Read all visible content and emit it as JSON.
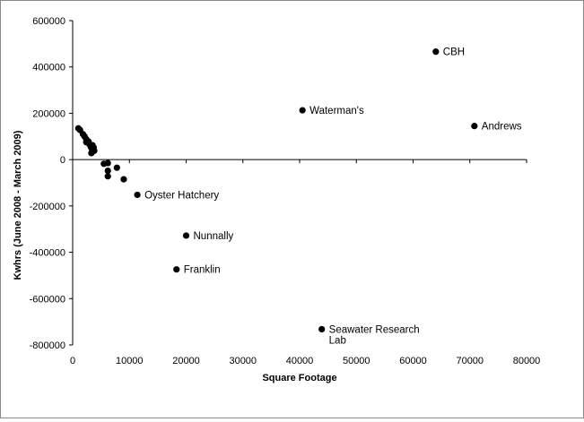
{
  "chart_data": {
    "type": "scatter",
    "title": "",
    "xlabel": "Square Footage",
    "ylabel": "Kwhrs (June 2008 - March 2009)",
    "xlim": [
      0,
      80000
    ],
    "ylim": [
      -800000,
      600000
    ],
    "x_ticks": [
      0,
      10000,
      20000,
      30000,
      40000,
      50000,
      60000,
      70000,
      80000
    ],
    "y_ticks": [
      -800000,
      -600000,
      -400000,
      -200000,
      0,
      200000,
      400000,
      600000
    ],
    "x_tick_labels": [
      "0",
      "10000",
      "20000",
      "30000",
      "40000",
      "50000",
      "60000",
      "70000",
      "80000"
    ],
    "y_tick_labels": [
      "-800000",
      "-600000",
      "-400000",
      "-200000",
      "0",
      "200000",
      "400000",
      "600000"
    ],
    "grid": false,
    "legend": false,
    "marker_color": "#000000",
    "points": [
      {
        "x": 1000,
        "y": 135000,
        "label": ""
      },
      {
        "x": 1300,
        "y": 128000,
        "label": ""
      },
      {
        "x": 1800,
        "y": 110000,
        "label": ""
      },
      {
        "x": 2100,
        "y": 100000,
        "label": ""
      },
      {
        "x": 2400,
        "y": 88000,
        "label": ""
      },
      {
        "x": 2400,
        "y": 75000,
        "label": ""
      },
      {
        "x": 2800,
        "y": 78000,
        "label": ""
      },
      {
        "x": 3000,
        "y": 65000,
        "label": ""
      },
      {
        "x": 3200,
        "y": 55000,
        "label": ""
      },
      {
        "x": 3400,
        "y": 45000,
        "label": ""
      },
      {
        "x": 3500,
        "y": 62000,
        "label": ""
      },
      {
        "x": 3700,
        "y": 52000,
        "label": ""
      },
      {
        "x": 3800,
        "y": 38000,
        "label": ""
      },
      {
        "x": 3300,
        "y": 28000,
        "label": ""
      },
      {
        "x": 5500,
        "y": -18000,
        "label": ""
      },
      {
        "x": 6200,
        "y": -15000,
        "label": ""
      },
      {
        "x": 6200,
        "y": -48000,
        "label": ""
      },
      {
        "x": 6200,
        "y": -72000,
        "label": ""
      },
      {
        "x": 7800,
        "y": -35000,
        "label": ""
      },
      {
        "x": 9000,
        "y": -85000,
        "label": ""
      },
      {
        "x": 11400,
        "y": -152000,
        "label": "Oyster Hatchery"
      },
      {
        "x": 20000,
        "y": -328000,
        "label": "Nunnally"
      },
      {
        "x": 18300,
        "y": -474000,
        "label": "Franklin"
      },
      {
        "x": 40500,
        "y": 213000,
        "label": "Waterman's"
      },
      {
        "x": 64000,
        "y": 466000,
        "label": "CBH"
      },
      {
        "x": 70800,
        "y": 145000,
        "label": "Andrews"
      },
      {
        "x": 43900,
        "y": -732000,
        "label": "Seawater Research",
        "label_line2": "Lab"
      }
    ]
  }
}
